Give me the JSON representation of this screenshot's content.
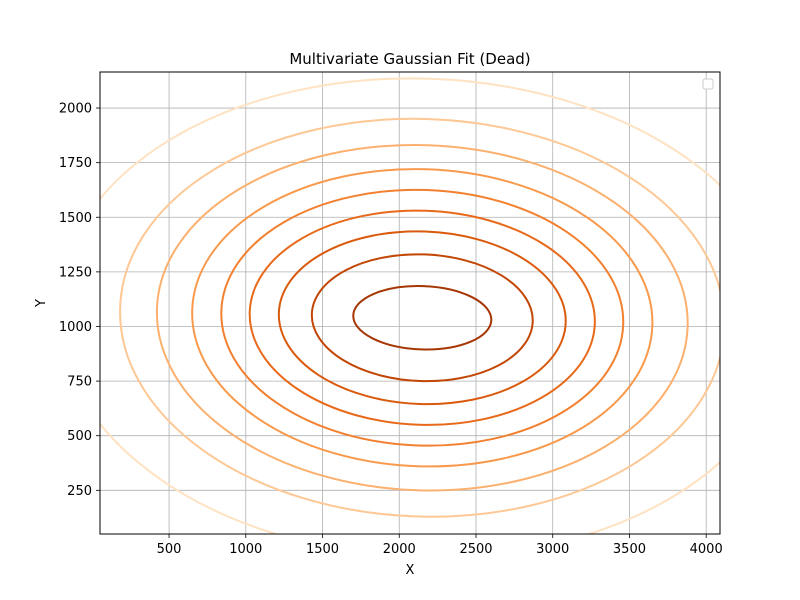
{
  "chart_data": {
    "type": "contour",
    "title": "Multivariate Gaussian Fit (Dead)",
    "xlabel": "X",
    "ylabel": "Y",
    "xlim": [
      50,
      4090
    ],
    "ylim": [
      50,
      2165
    ],
    "xticks": [
      500,
      1000,
      1500,
      2000,
      2500,
      3000,
      3500,
      4000
    ],
    "yticks": [
      250,
      500,
      750,
      1000,
      1250,
      1500,
      1750,
      2000
    ],
    "grid": true,
    "legend": {
      "placement": "upper right",
      "entries": []
    },
    "colormap": "Oranges",
    "center": {
      "x": 2150,
      "y": 1040
    },
    "contours": [
      {
        "semi_x": 450,
        "semi_y": 145,
        "color": "#a63603"
      },
      {
        "semi_x": 720,
        "semi_y": 290,
        "color": "#c24604"
      },
      {
        "semi_x": 935,
        "semi_y": 395,
        "color": "#d95a0c"
      },
      {
        "semi_x": 1125,
        "semi_y": 490,
        "color": "#e8691a"
      },
      {
        "semi_x": 1310,
        "semi_y": 585,
        "color": "#f2802f"
      },
      {
        "semi_x": 1500,
        "semi_y": 680,
        "color": "#f8994c"
      },
      {
        "semi_x": 1730,
        "semi_y": 790,
        "color": "#fbb06e"
      },
      {
        "semi_x": 1970,
        "semi_y": 910,
        "color": "#fdc895"
      },
      {
        "semi_x": 2380,
        "semi_y": 1095,
        "color": "#fee2c2"
      }
    ]
  }
}
